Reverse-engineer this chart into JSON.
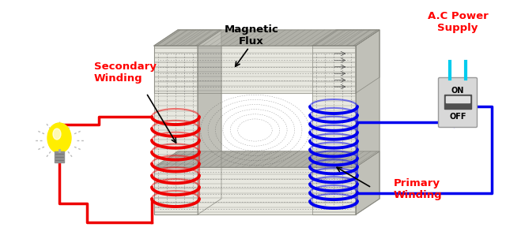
{
  "bg_color": "#ffffff",
  "labels": {
    "secondary_winding": "Secondary\nWinding",
    "magnetic_flux": "Magnetic\nFlux",
    "primary_winding": "Primary\nWinding",
    "ac_power": "A.C Power\nSupply"
  },
  "label_color": "#ff0000",
  "core_front_color": "#e8e8e0",
  "core_top_color": "#b0b0a8",
  "core_side_color": "#c0c0b8",
  "core_edge_color": "#888880",
  "coil_red_color": "#ee0000",
  "coil_blue_color": "#0000ee",
  "wire_red_color": "#ee0000",
  "wire_blue_color": "#0000ee",
  "bulb_yellow": "#ffee00",
  "bulb_base_color": "#909090",
  "switch_body_color": "#d8d8d8",
  "switch_toggle_color": "#505050",
  "prong_color": "#00ccee",
  "flux_arrow_color": "#333333",
  "lam_line_color": "#555550"
}
